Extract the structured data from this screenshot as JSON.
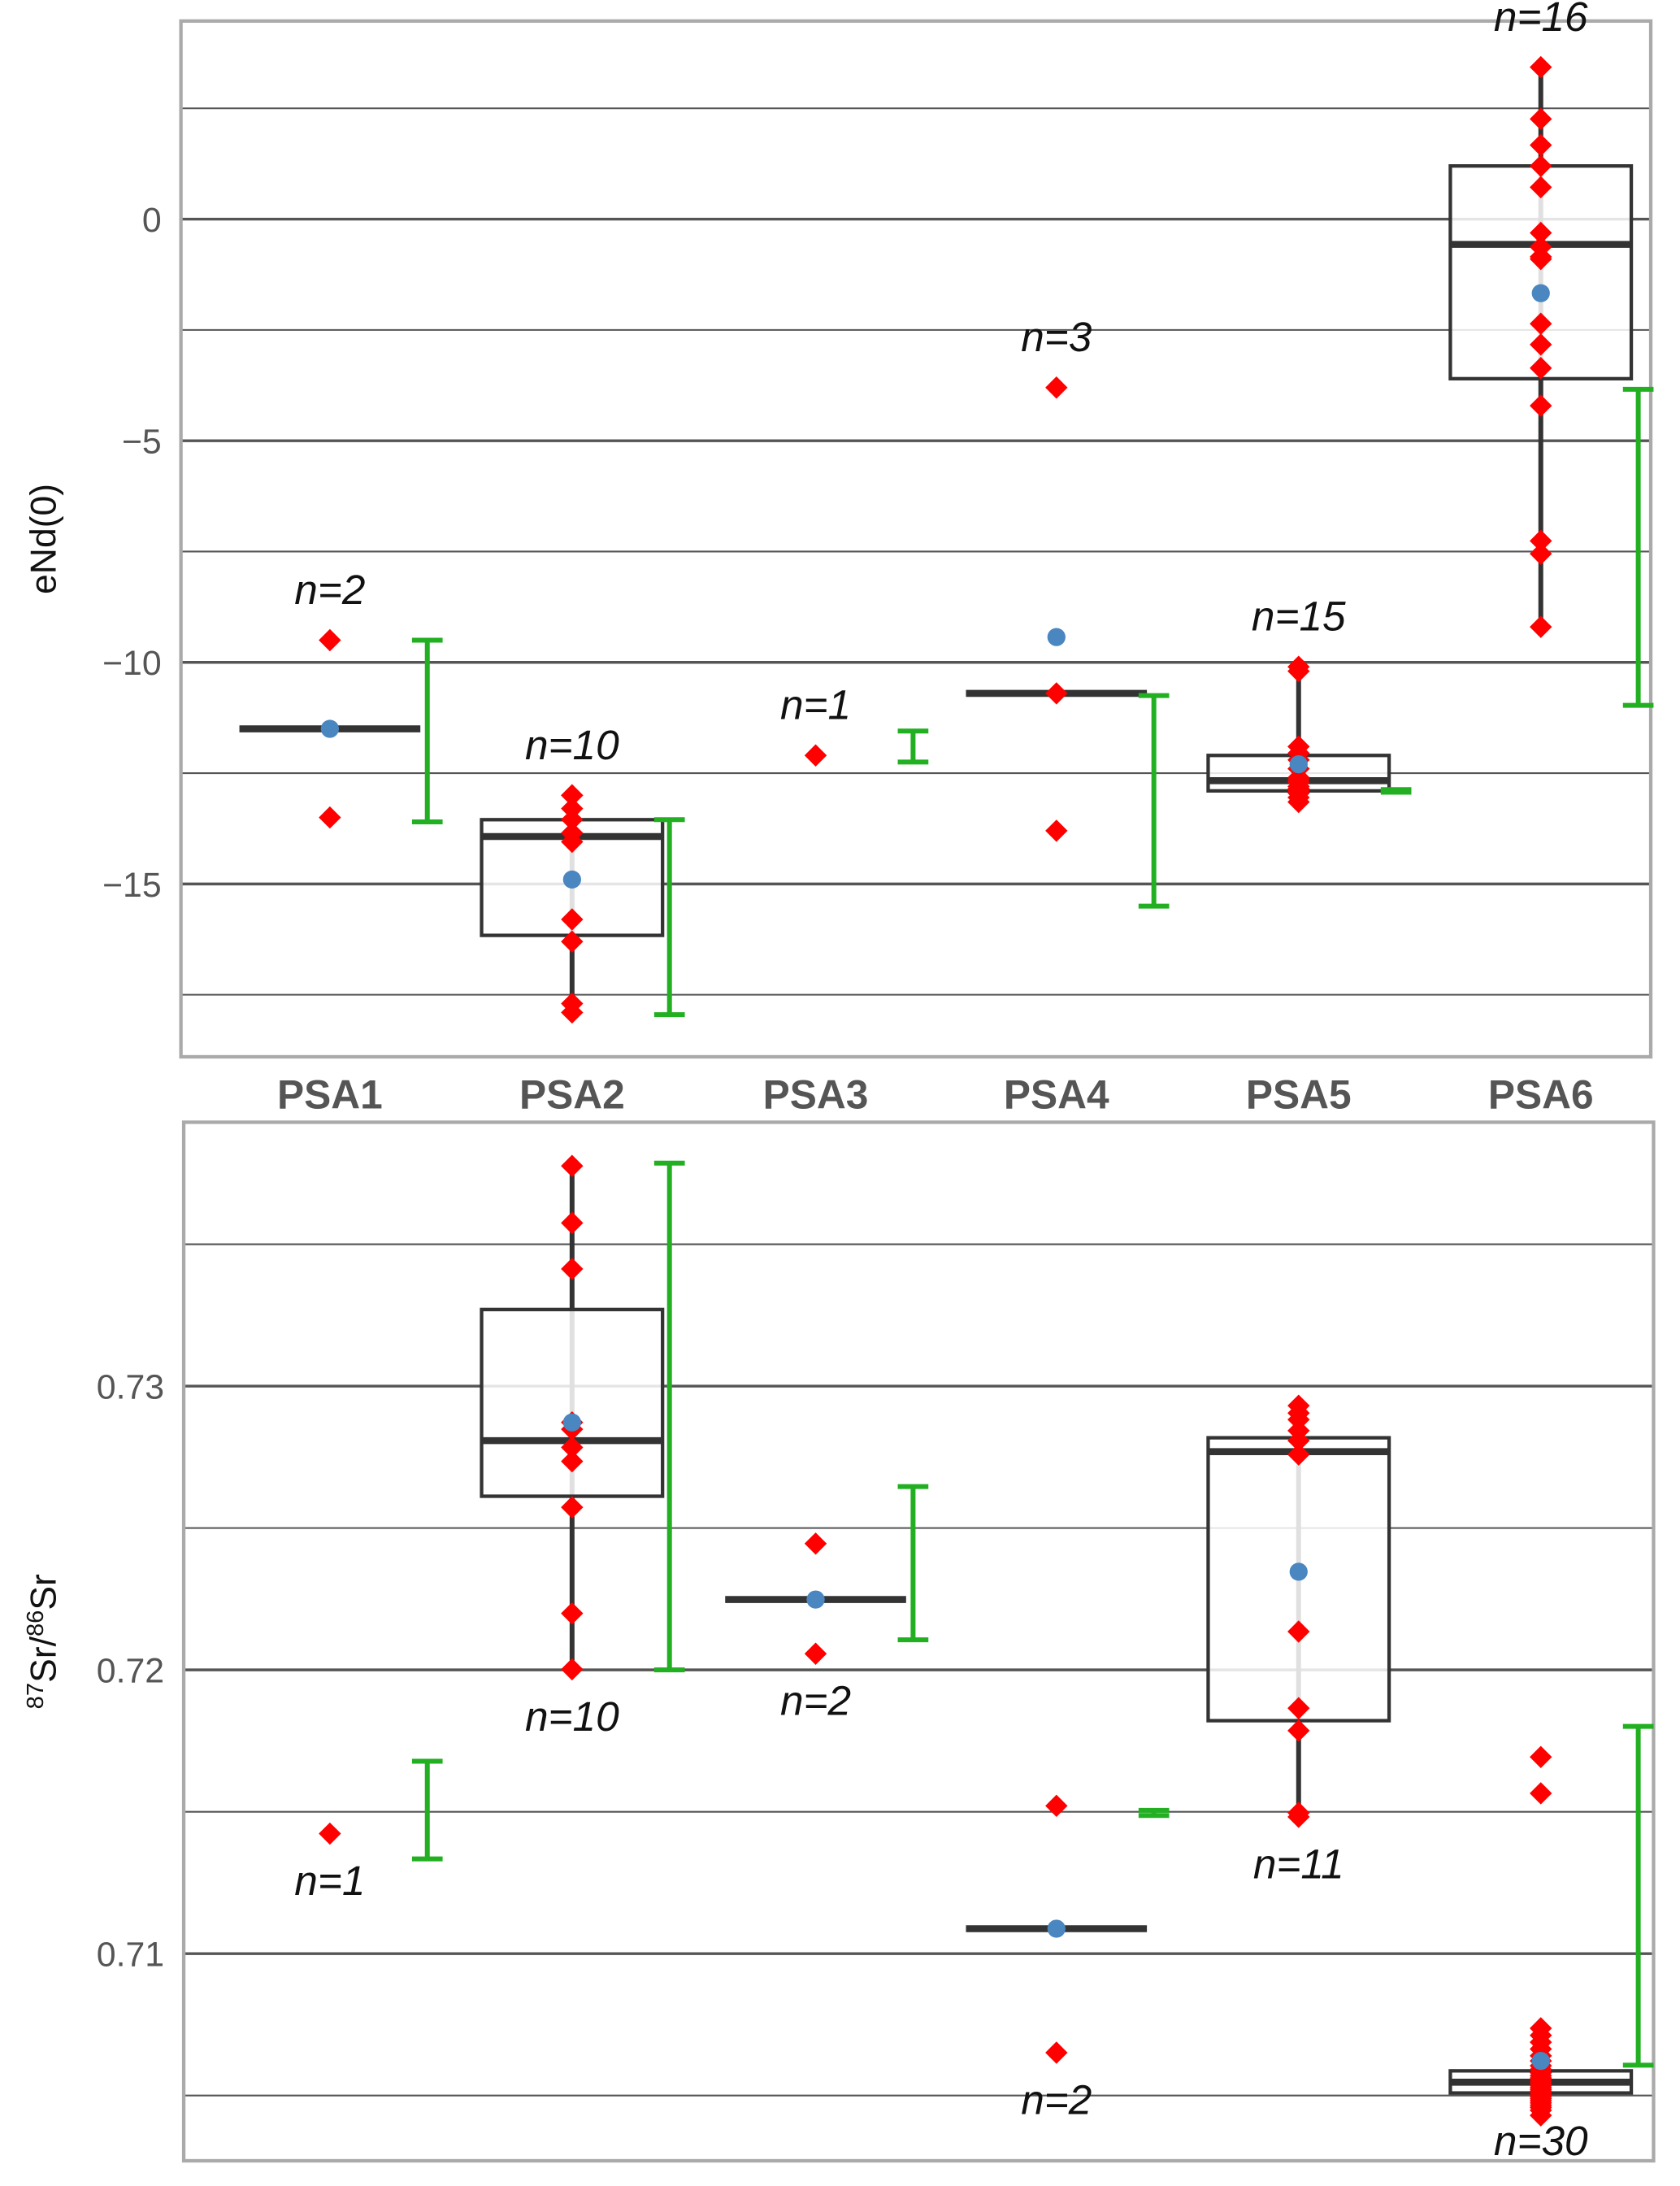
{
  "colors": {
    "points": "#ff0000",
    "mean": "#4a86c0",
    "range_bar": "#22b022",
    "box": "#333333",
    "grid": "#555555",
    "frame": "#aaaaaa"
  },
  "chart_data": [
    {
      "type": "box",
      "ylabel": "eNd(0)",
      "ylim": [
        -18.9,
        4.47
      ],
      "yticks": [
        0,
        -5,
        -10,
        -15
      ],
      "ytick_labels": [
        "0",
        "−5",
        "−10",
        "−15"
      ],
      "grid_step": 2.5,
      "categories": [
        "PSA1",
        "PSA2",
        "PSA3",
        "PSA4",
        "PSA5",
        "PSA6"
      ],
      "groups": [
        {
          "name": "PSA1",
          "n_label": "n=2",
          "points": [
            -9.5,
            -13.5
          ],
          "mean": -11.5,
          "median": -11.5,
          "box": null,
          "whiskers": null,
          "range": [
            -9.5,
            -13.6
          ]
        },
        {
          "name": "PSA2",
          "n_label": "n=10",
          "points": [
            -13.0,
            -13.0,
            -13.3,
            -13.55,
            -13.85,
            -14.05,
            -15.8,
            -16.3,
            -17.7,
            -17.9
          ],
          "mean": -14.9,
          "median": -13.93,
          "box": [
            -13.55,
            -16.16
          ],
          "whiskers": [
            -12.9,
            -17.9
          ],
          "range": [
            -13.55,
            -17.95
          ]
        },
        {
          "name": "PSA3",
          "n_label": "n=1",
          "points": [
            -12.1
          ],
          "mean": null,
          "median": null,
          "box": null,
          "whiskers": null,
          "range": [
            -11.55,
            -12.25
          ]
        },
        {
          "name": "PSA4",
          "n_label": "n=3",
          "points": [
            -3.8,
            -10.7,
            -13.8
          ],
          "mean": -9.43,
          "median": -10.7,
          "box": null,
          "whiskers": null,
          "range": [
            -10.75,
            -15.5
          ]
        },
        {
          "name": "PSA5",
          "n_label": "n=15",
          "points": [
            -10.1,
            -10.2,
            -11.9,
            -12.05,
            -12.2,
            -12.4,
            -12.6,
            -12.65,
            -12.7,
            -12.8,
            -12.85,
            -12.9,
            -12.95,
            -13.05,
            -13.15
          ],
          "mean": -12.3,
          "median": -12.67,
          "box": [
            -12.1,
            -12.9
          ],
          "whiskers": [
            -10.1,
            -13.15
          ],
          "range": [
            -12.87,
            -12.93
          ]
        },
        {
          "name": "PSA6",
          "n_label": "n=16",
          "points": [
            3.43,
            2.26,
            1.67,
            1.2,
            0.72,
            -0.31,
            -0.63,
            -0.85,
            -0.9,
            -2.36,
            -2.83,
            -3.36,
            -4.21,
            -7.26,
            -7.55,
            -9.2
          ],
          "mean": -1.67,
          "median": -0.57,
          "box": [
            1.2,
            -3.6
          ],
          "whiskers": [
            3.43,
            -9.2
          ],
          "range": [
            -3.84,
            -10.97
          ]
        }
      ]
    },
    {
      "type": "box",
      "ylabel_parts": [
        "87",
        "Sr/",
        "86",
        "Sr"
      ],
      "ylim": [
        0.7027,
        0.7393
      ],
      "yticks": [
        0.73,
        0.72,
        0.71
      ],
      "ytick_labels": [
        "0.73",
        "0.72",
        "0.71"
      ],
      "grid_step": 0.005,
      "categories": [
        "PSA1",
        "PSA2",
        "PSA3",
        "PSA4",
        "PSA5",
        "PSA6"
      ],
      "groups": [
        {
          "name": "PSA1",
          "n_label": "n=1",
          "points": [
            0.71423
          ],
          "mean": null,
          "median": null,
          "box": null,
          "whiskers": null,
          "range": [
            0.71678,
            0.71334
          ]
        },
        {
          "name": "PSA2",
          "n_label": "n=10",
          "points": [
            0.73776,
            0.73575,
            0.73413,
            0.72872,
            0.72848,
            0.72784,
            0.72735,
            0.72573,
            0.72199,
            0.72002
          ],
          "mean": 0.72872,
          "median": 0.72808,
          "box": [
            0.7327,
            0.72612
          ],
          "whiskers": [
            0.73776,
            0.72002
          ],
          "range": [
            0.73786,
            0.72
          ]
        },
        {
          "name": "PSA3",
          "n_label": "n=2",
          "points": [
            0.72445,
            0.72057
          ],
          "mean": 0.72248,
          "median": 0.72248,
          "box": null,
          "whiskers": null,
          "range": [
            0.72646,
            0.72106
          ]
        },
        {
          "name": "PSA4",
          "n_label": "n=2",
          "points": [
            0.71521,
            0.70651
          ],
          "mean": 0.71088,
          "median": 0.71088,
          "box": null,
          "whiskers": null,
          "range": [
            0.71505,
            0.71487
          ]
        },
        {
          "name": "PSA5",
          "n_label": "n=11",
          "points": [
            0.72931,
            0.72905,
            0.72882,
            0.72843,
            0.72808,
            0.72759,
            0.72135,
            0.71865,
            0.71786,
            0.71496,
            0.71482
          ],
          "mean": 0.72346,
          "median": 0.72769,
          "box": [
            0.72818,
            0.71821
          ],
          "whiskers": [
            0.72931,
            0.71482
          ],
          "range": null
        },
        {
          "name": "PSA6",
          "n_label": "n=30",
          "points": [
            0.71693,
            0.71565,
            0.70737,
            0.70712,
            0.70688,
            0.70664,
            0.7064,
            0.70622,
            0.70605,
            0.70592,
            0.7058,
            0.7057,
            0.70562,
            0.70555,
            0.70548,
            0.70541,
            0.70535,
            0.70528,
            0.70521,
            0.70515,
            0.70509,
            0.70502,
            0.70496,
            0.70489,
            0.70482,
            0.70474,
            0.70466,
            0.70458,
            0.70448,
            0.7043
          ],
          "mean": 0.70622,
          "median": 0.70547,
          "box": [
            0.70587,
            0.70509
          ],
          "whiskers": [
            0.70737,
            0.7043
          ],
          "range": [
            0.71801,
            0.70607
          ]
        }
      ]
    }
  ]
}
